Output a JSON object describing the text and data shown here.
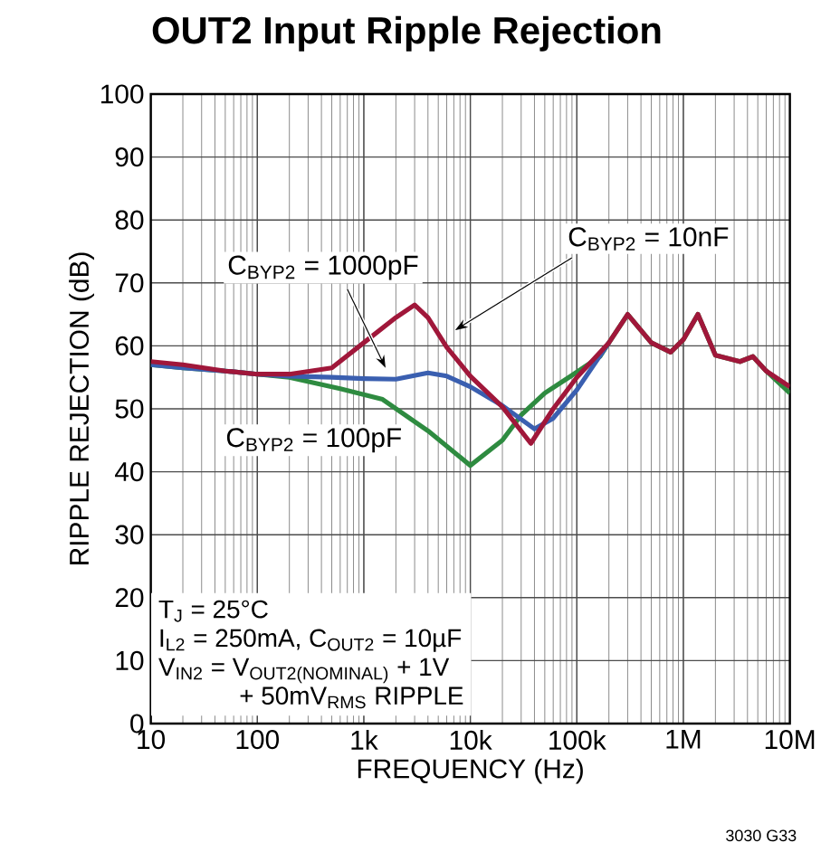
{
  "chart_data": {
    "type": "line",
    "title": "OUT2 Input Ripple Rejection",
    "xlabel": "FREQUENCY (Hz)",
    "ylabel": "RIPPLE REJECTION (dB)",
    "log": "x",
    "grid": true,
    "line_style": "solid",
    "xlim": [
      10,
      10000000
    ],
    "ylim": [
      0,
      100
    ],
    "xticks": [
      {
        "value": 10,
        "label": "10"
      },
      {
        "value": 100,
        "label": "100"
      },
      {
        "value": 1000,
        "label": "1k"
      },
      {
        "value": 10000,
        "label": "10k"
      },
      {
        "value": 100000,
        "label": "100k"
      },
      {
        "value": 1000000,
        "label": "1M"
      },
      {
        "value": 10000000,
        "label": "10M"
      }
    ],
    "yticks": [
      0,
      10,
      20,
      30,
      40,
      50,
      60,
      70,
      80,
      90,
      100
    ],
    "series": [
      {
        "name": "C$_{BYP2}$ = 100pF",
        "color": "#2e8b40",
        "x": [
          10,
          20,
          50,
          100,
          200,
          600,
          1500,
          4000,
          10000,
          20000,
          30000,
          50000,
          88000,
          165000,
          200000,
          300000,
          500000,
          760000,
          1000000,
          1370000,
          2000000,
          3400000,
          4500000,
          6000000,
          10000000
        ],
        "values": [
          57,
          56.5,
          56,
          55.5,
          55,
          53.2,
          51.5,
          46.5,
          41,
          45,
          49,
          52.5,
          55.2,
          58.3,
          60.5,
          65,
          60.5,
          59,
          61,
          65,
          58.5,
          57.5,
          58.3,
          56,
          52.5
        ]
      },
      {
        "name": "C$_{BYP2}$ = 1000pF",
        "color": "#3a5fb0",
        "x": [
          10,
          20,
          50,
          100,
          200,
          500,
          1000,
          2000,
          4000,
          6000,
          10000,
          20000,
          40000,
          60000,
          100000,
          200000
        ],
        "values": [
          57,
          56.5,
          56,
          55.5,
          55.2,
          55,
          54.8,
          54.7,
          55.7,
          55.2,
          53.5,
          50.5,
          46.8,
          48.5,
          53,
          60.5
        ]
      },
      {
        "name": "C$_{BYP2}$ = 10nF",
        "color": "#a0173a",
        "x": [
          10,
          20,
          50,
          100,
          200,
          500,
          1000,
          2000,
          3000,
          4000,
          6000,
          10000,
          20000,
          37000,
          60000,
          100000,
          200000,
          300000,
          500000,
          760000,
          1000000,
          1370000,
          2000000,
          3400000,
          4500000,
          6000000,
          10000000
        ],
        "values": [
          57.5,
          57,
          56,
          55.5,
          55.5,
          56.5,
          60.5,
          64.5,
          66.5,
          64.5,
          59.8,
          55.2,
          50.3,
          44.5,
          50,
          55,
          60.5,
          65,
          60.5,
          59,
          61,
          65,
          58.5,
          57.5,
          58.3,
          56,
          53.5
        ]
      }
    ],
    "annotations": [
      "T$_{J}$ = 25°C",
      "I$_{L2}$ = 250mA, C$_{OUT2}$ = 10µF",
      "\\text{V}_{\\text{IN2}}\\text{ = V}_{\\text{OUT2(NOMINAL)}}\\text{ + 1V}",
      "+ 50mV$_{RMS}$ RIPPLE",
      "3030 G33"
    ]
  }
}
